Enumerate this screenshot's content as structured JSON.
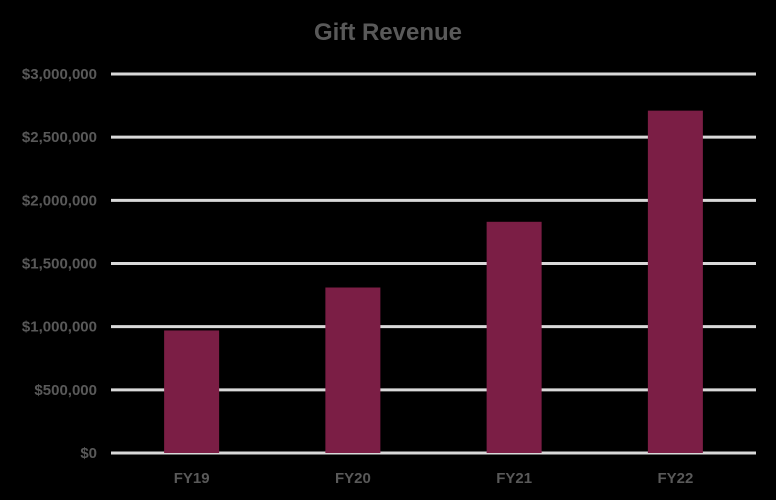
{
  "chart_data": {
    "type": "bar",
    "title": "Gift Revenue",
    "xlabel": "",
    "ylabel": "",
    "categories": [
      "FY19",
      "FY20",
      "FY21",
      "FY22"
    ],
    "values": [
      970000,
      1310000,
      1830000,
      2710000
    ],
    "ylim": [
      0,
      3000000
    ],
    "yticks": [
      0,
      500000,
      1000000,
      1500000,
      2000000,
      2500000,
      3000000
    ],
    "ytick_labels": [
      "$0",
      "$500,000",
      "$1,000,000",
      "$1,500,000",
      "$2,000,000",
      "$2,500,000",
      "$3,000,000"
    ],
    "grid": true,
    "legend": "none",
    "colors": {
      "bar": "#7b1e45",
      "background": "#000000",
      "grid": "#d9d9d9",
      "text": "#595959"
    }
  }
}
